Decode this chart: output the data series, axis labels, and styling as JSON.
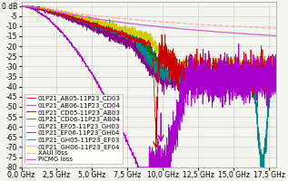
{
  "xlim": [
    0,
    18
  ],
  "ylim": [
    -80,
    2
  ],
  "yticks": [
    0,
    -5,
    -10,
    -15,
    -20,
    -25,
    -30,
    -35,
    -40,
    -45,
    -50,
    -55,
    -60,
    -65,
    -70,
    -75,
    -80
  ],
  "xtick_labels": [
    "0,0 GHz",
    "2,5 GHz",
    "5,0 GHz",
    "7,5 GHz",
    "10,0 GHz",
    "12,5 GHz",
    "15,0 GHz",
    "17,5 GHz"
  ],
  "xtick_positions": [
    0,
    2.5,
    5.0,
    7.5,
    10.0,
    12.5,
    15.0,
    17.5
  ],
  "background_color": "#f5f5f0",
  "grid_color": "#c8c8c8",
  "series": [
    {
      "label": "01P21_AB05-11P23_CD03",
      "color": "#cc0000"
    },
    {
      "label": "01P21_AB06-11P23_CD04",
      "color": "#aa00cc"
    },
    {
      "label": "01P21_CD05-11P23_AB03",
      "color": "#0000bb"
    },
    {
      "label": "01P21_CD06-11P23_AB04",
      "color": "#007700"
    },
    {
      "label": "01P21_EF05-11P23_GH03",
      "color": "#cc99dd"
    },
    {
      "label": "01P21_EF06-11P23_GH04",
      "color": "#880088"
    },
    {
      "label": "01P21_GH05-11P23_EF03",
      "color": "#008888"
    },
    {
      "label": "01P21_GH06-11P23_EF04",
      "color": "#cccc00"
    },
    {
      "label": "XAUI loss",
      "color": "#ffaaaa"
    },
    {
      "label": "PICMG loss",
      "color": "#cc66cc"
    }
  ],
  "legend_fontsize": 5.0,
  "tick_fontsize": 5.5,
  "ylabel_text": "0 dB"
}
